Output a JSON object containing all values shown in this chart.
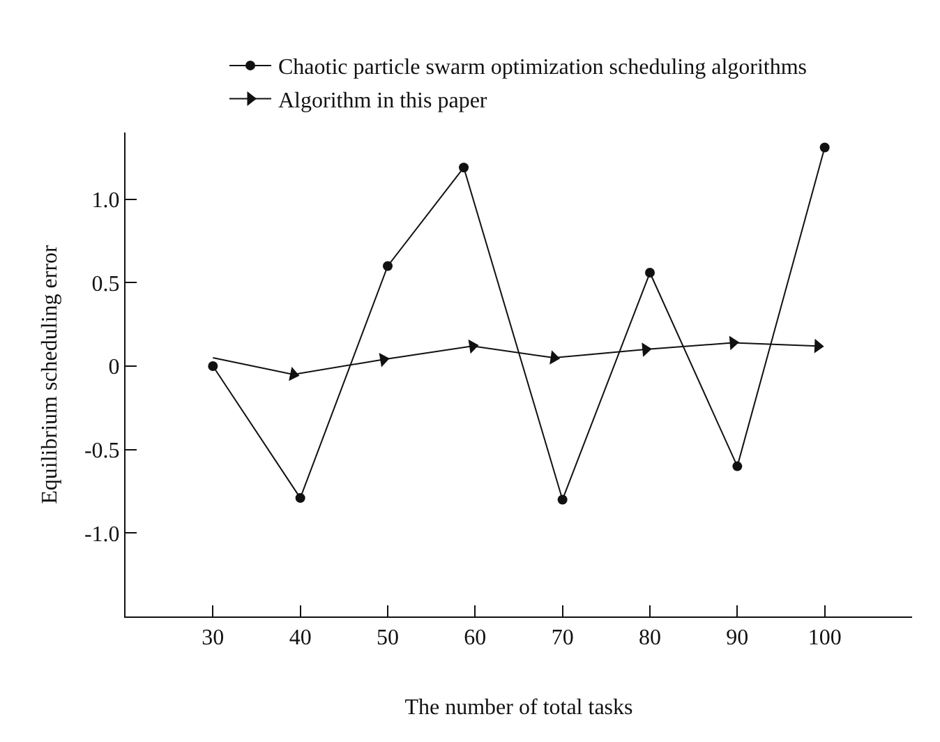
{
  "chart_data": {
    "type": "line",
    "xlabel": "The number of total tasks",
    "ylabel": "Equilibrium scheduling error",
    "series": [
      {
        "name": "Chaotic particle swarm optimization scheduling algorithms",
        "color": "#111111",
        "marker": "circle",
        "x": [
          30,
          40,
          50,
          58.7,
          70,
          80,
          90,
          100
        ],
        "values": [
          0,
          -0.79,
          0.6,
          1.19,
          -0.8,
          0.56,
          -0.6,
          1.31
        ]
      },
      {
        "name": "Algorithm in this paper",
        "color": "#111111",
        "marker": "triangle",
        "x": [
          30,
          39.2,
          49.5,
          59.7,
          69,
          79.5,
          89.5,
          99.2
        ],
        "values": [
          0.05,
          -0.05,
          0.04,
          0.12,
          0.05,
          0.1,
          0.14,
          0.12
        ]
      }
    ],
    "xlim": [
      20,
      110
    ],
    "xticks": [
      30,
      40,
      50,
      60,
      70,
      80,
      90,
      100
    ],
    "ylim": [
      -1.5,
      1.4
    ],
    "yticks": [
      {
        "value": -1.0,
        "label": "-1.0"
      },
      {
        "value": -0.5,
        "label": "-0.5"
      },
      0,
      {
        "value": 0.5,
        "label": "0.5"
      },
      {
        "value": 1.0,
        "label": "1.0"
      }
    ],
    "legend": "top",
    "line_style": "solid"
  }
}
